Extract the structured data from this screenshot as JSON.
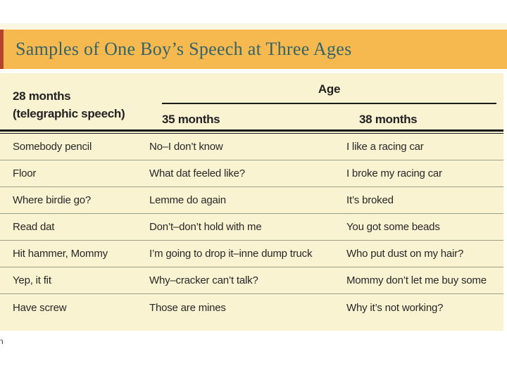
{
  "title_bar": {
    "title": "Samples of One Boy’s Speech at Three Ages",
    "bar_color": "#f6b94f",
    "accent_stripe_color": "#b4432c",
    "title_color": "#33646a"
  },
  "table": {
    "background_color": "#faf3d2",
    "header": {
      "col1_line1": "28 months",
      "col1_line2": "(telegraphic speech)",
      "age_span_label": "Age",
      "col2_label": "35 months",
      "col3_label": "38 months"
    },
    "rows": [
      {
        "c1": "Somebody pencil",
        "c2": "No–I don’t know",
        "c3": "I like a racing car"
      },
      {
        "c1": "Floor",
        "c2": "What dat feeled like?",
        "c3": "I broke my racing car"
      },
      {
        "c1": "Where birdie go?",
        "c2": "Lemme do again",
        "c3": "It’s broked"
      },
      {
        "c1": "Read dat",
        "c2": "Don’t–don’t hold with me",
        "c3": "You got some beads"
      },
      {
        "c1": "Hit hammer, Mommy",
        "c2": "I’m going to drop it–inne dump truck",
        "c3": "Who put dust on my hair?"
      },
      {
        "c1": "Yep, it fit",
        "c2": "Why–cracker can’t talk?",
        "c3": "Mommy don’t let me buy some"
      },
      {
        "c1": "Have screw",
        "c2": "Those are mines",
        "c3": "Why it’s not working?"
      }
    ]
  },
  "margin_fragment": "n"
}
